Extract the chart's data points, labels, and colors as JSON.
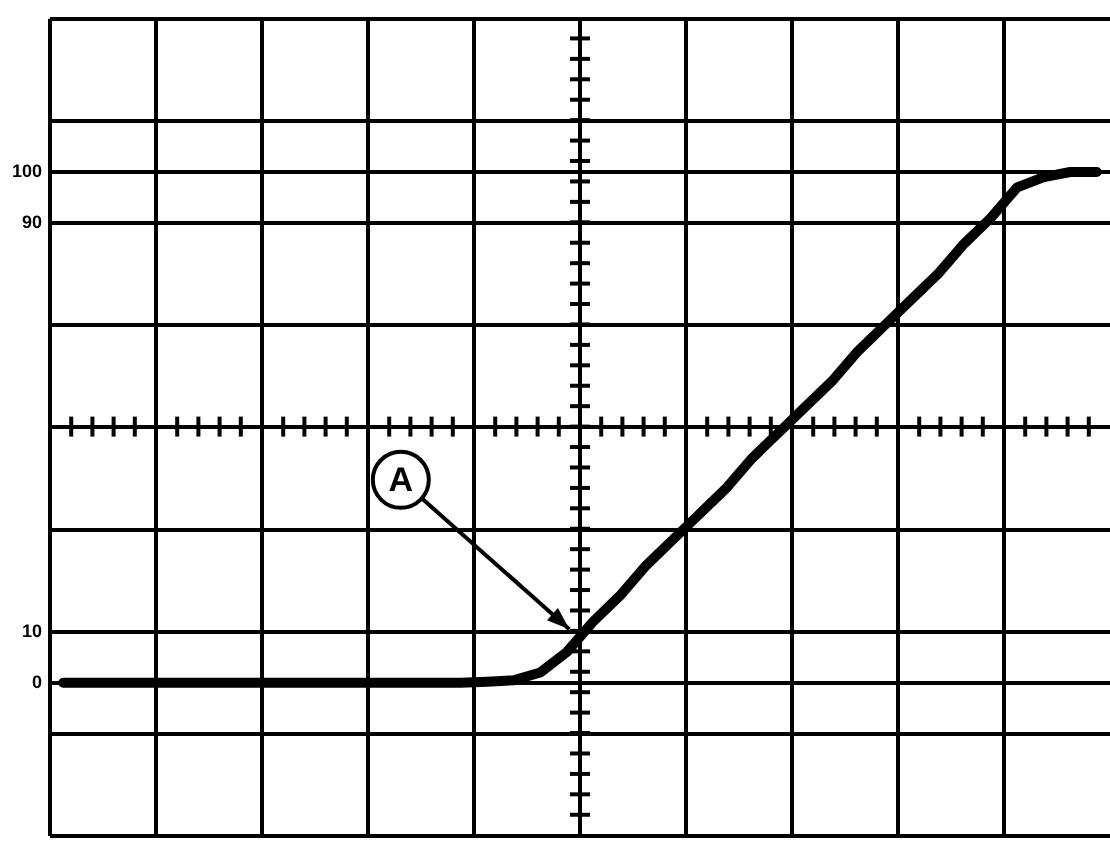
{
  "chart_data": {
    "type": "line",
    "tick_labels": "y",
    "grid": true,
    "legend": false,
    "marker": "none",
    "line_style": "solid",
    "categories": [
      null,
      null,
      null,
      null,
      null,
      null,
      null,
      null,
      null,
      null,
      null,
      null,
      null,
      null,
      null,
      null,
      null,
      null,
      null,
      null,
      null,
      null,
      null,
      null,
      null,
      null,
      null,
      null,
      null,
      null,
      null,
      null,
      null,
      null,
      null,
      null,
      null,
      null,
      null,
      null
    ],
    "ylim": [
      -30,
      130
    ],
    "yticks": [
      {
        "value": -30,
        "label": null
      },
      {
        "value": -10,
        "label": null
      },
      0,
      10,
      {
        "value": 30,
        "label": null
      },
      {
        "value": 50,
        "label": null
      },
      {
        "value": 70,
        "label": null
      },
      90,
      100,
      {
        "value": 110,
        "label": null
      },
      {
        "value": 130,
        "label": null
      }
    ],
    "series": [
      {
        "color": "#000000",
        "values": [
          0,
          0,
          0,
          0,
          0,
          0,
          0,
          0,
          0,
          0,
          0,
          0,
          0,
          0,
          0,
          0,
          0.2,
          0.5,
          2,
          6,
          12,
          17,
          23,
          28,
          33,
          38,
          44,
          49,
          54,
          59,
          65,
          70,
          75,
          80,
          86,
          91,
          97,
          99,
          100,
          100
        ]
      }
    ],
    "annotations": [
      "A"
    ]
  }
}
